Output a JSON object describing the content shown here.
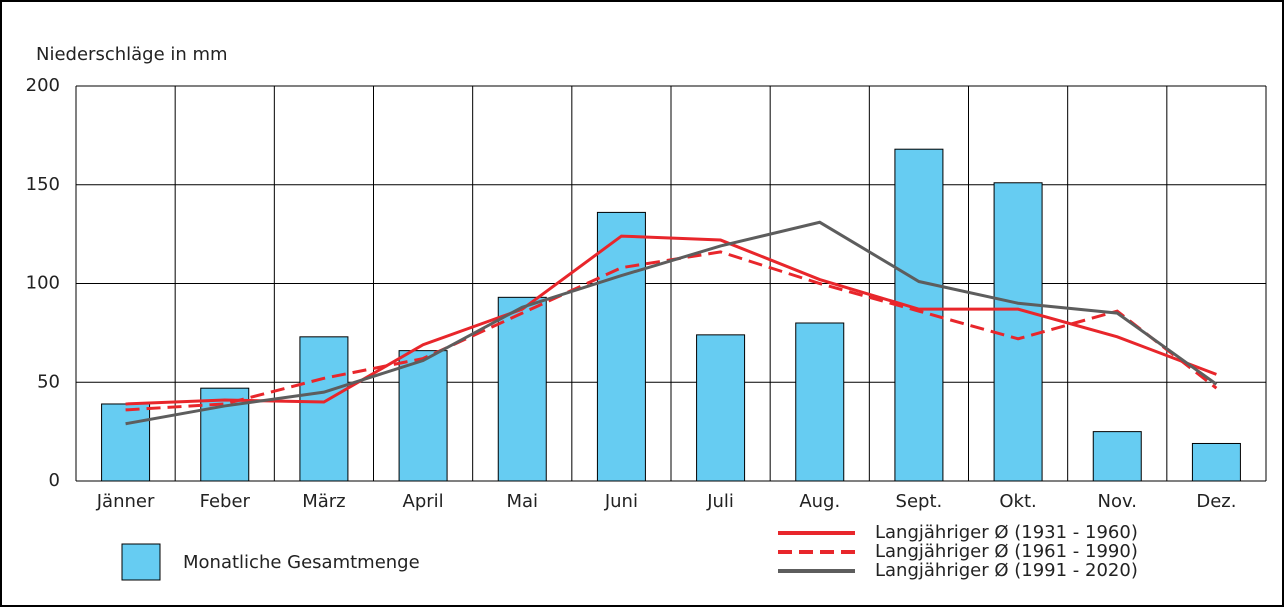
{
  "chart_data": {
    "type": "bar",
    "y_label": "Niederschläge in mm",
    "categories": [
      "Jänner",
      "Feber",
      "März",
      "April",
      "Mai",
      "Juni",
      "Juli",
      "Aug.",
      "Sept.",
      "Okt.",
      "Nov.",
      "Dez."
    ],
    "series": [
      {
        "name": "Monatliche Gesamtmenge",
        "type": "bar",
        "color": "#66ccf2",
        "values": [
          39,
          47,
          73,
          66,
          93,
          136,
          74,
          80,
          168,
          151,
          25,
          19
        ]
      },
      {
        "name": "Langjähriger Ø (1931 - 1960)",
        "type": "line",
        "color": "#e8262b",
        "dash": false,
        "values": [
          39,
          41,
          40,
          69,
          87,
          124,
          122,
          102,
          87,
          87,
          73,
          54
        ]
      },
      {
        "name": "Langjähriger Ø (1961 - 1990)",
        "type": "line",
        "color": "#e8262b",
        "dash": true,
        "values": [
          36,
          39,
          52,
          62,
          85,
          108,
          116,
          100,
          86,
          72,
          86,
          47
        ]
      },
      {
        "name": "Langjähriger Ø (1991 - 2020)",
        "type": "line",
        "color": "#5d5d5d",
        "dash": false,
        "values": [
          29,
          38,
          45,
          61,
          88,
          104,
          119,
          131,
          101,
          90,
          85,
          49
        ]
      }
    ],
    "ylim": [
      0,
      200
    ],
    "yticks": [
      0,
      50,
      100,
      150,
      200
    ],
    "grid": true
  }
}
